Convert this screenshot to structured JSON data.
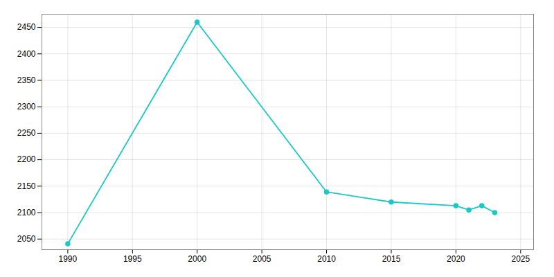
{
  "chart_data": {
    "type": "line",
    "x": [
      1990,
      2000,
      2010,
      2015,
      2020,
      2021,
      2022,
      2023
    ],
    "values": [
      2041,
      2460,
      2139,
      2120,
      2113,
      2105,
      2113,
      2100
    ],
    "color": "#1ac8c8",
    "marker": "circle",
    "xlim": [
      1988,
      2026
    ],
    "ylim": [
      2030,
      2475
    ],
    "xticks": [
      1990,
      1995,
      2000,
      2005,
      2010,
      2015,
      2020,
      2025
    ],
    "yticks": [
      2050,
      2100,
      2150,
      2200,
      2250,
      2300,
      2350,
      2400,
      2450
    ],
    "grid": true
  }
}
